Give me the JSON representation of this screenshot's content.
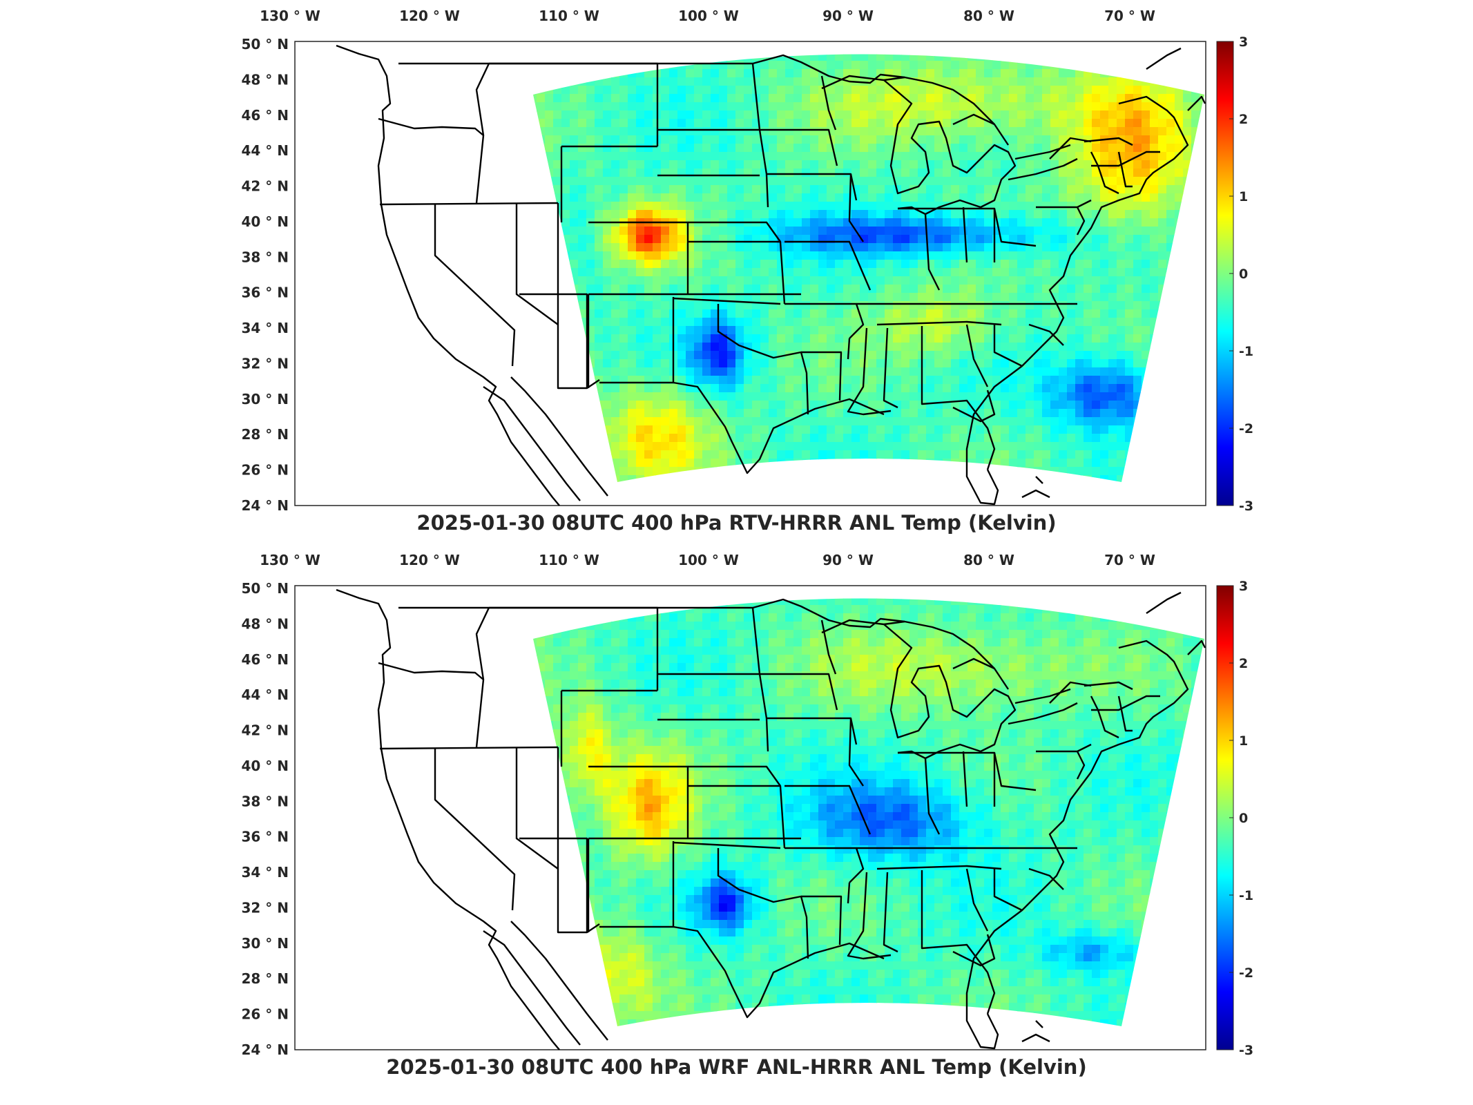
{
  "panels": [
    {
      "title": "2025-01-30 08UTC 400 hPa RTV-HRRR ANL Temp (Kelvin)",
      "field_pattern": "rtv"
    },
    {
      "title": "2025-01-30 08UTC 400 hPa WRF ANL-HRRR ANL Temp (Kelvin)",
      "field_pattern": "wrf"
    }
  ],
  "axes": {
    "lon_labels": [
      "130",
      "120",
      "110",
      "100",
      "90",
      "80",
      "70"
    ],
    "lon_suffix": "W",
    "lat_labels": [
      "50",
      "48",
      "46",
      "44",
      "42",
      "40",
      "38",
      "36",
      "34",
      "32",
      "30",
      "28",
      "26",
      "24"
    ],
    "lat_suffix": "N",
    "degree_symbol": "°"
  },
  "colorbar": {
    "ticks": [
      "3",
      "2",
      "1",
      "0",
      "-1",
      "-2",
      "-3"
    ],
    "range": [
      -3,
      3
    ],
    "colormap": "jet",
    "colors": [
      "#00008f",
      "#0000ff",
      "#0080ff",
      "#00ffff",
      "#80ff80",
      "#ffff00",
      "#ff8000",
      "#ff0000",
      "#800000"
    ]
  }
}
